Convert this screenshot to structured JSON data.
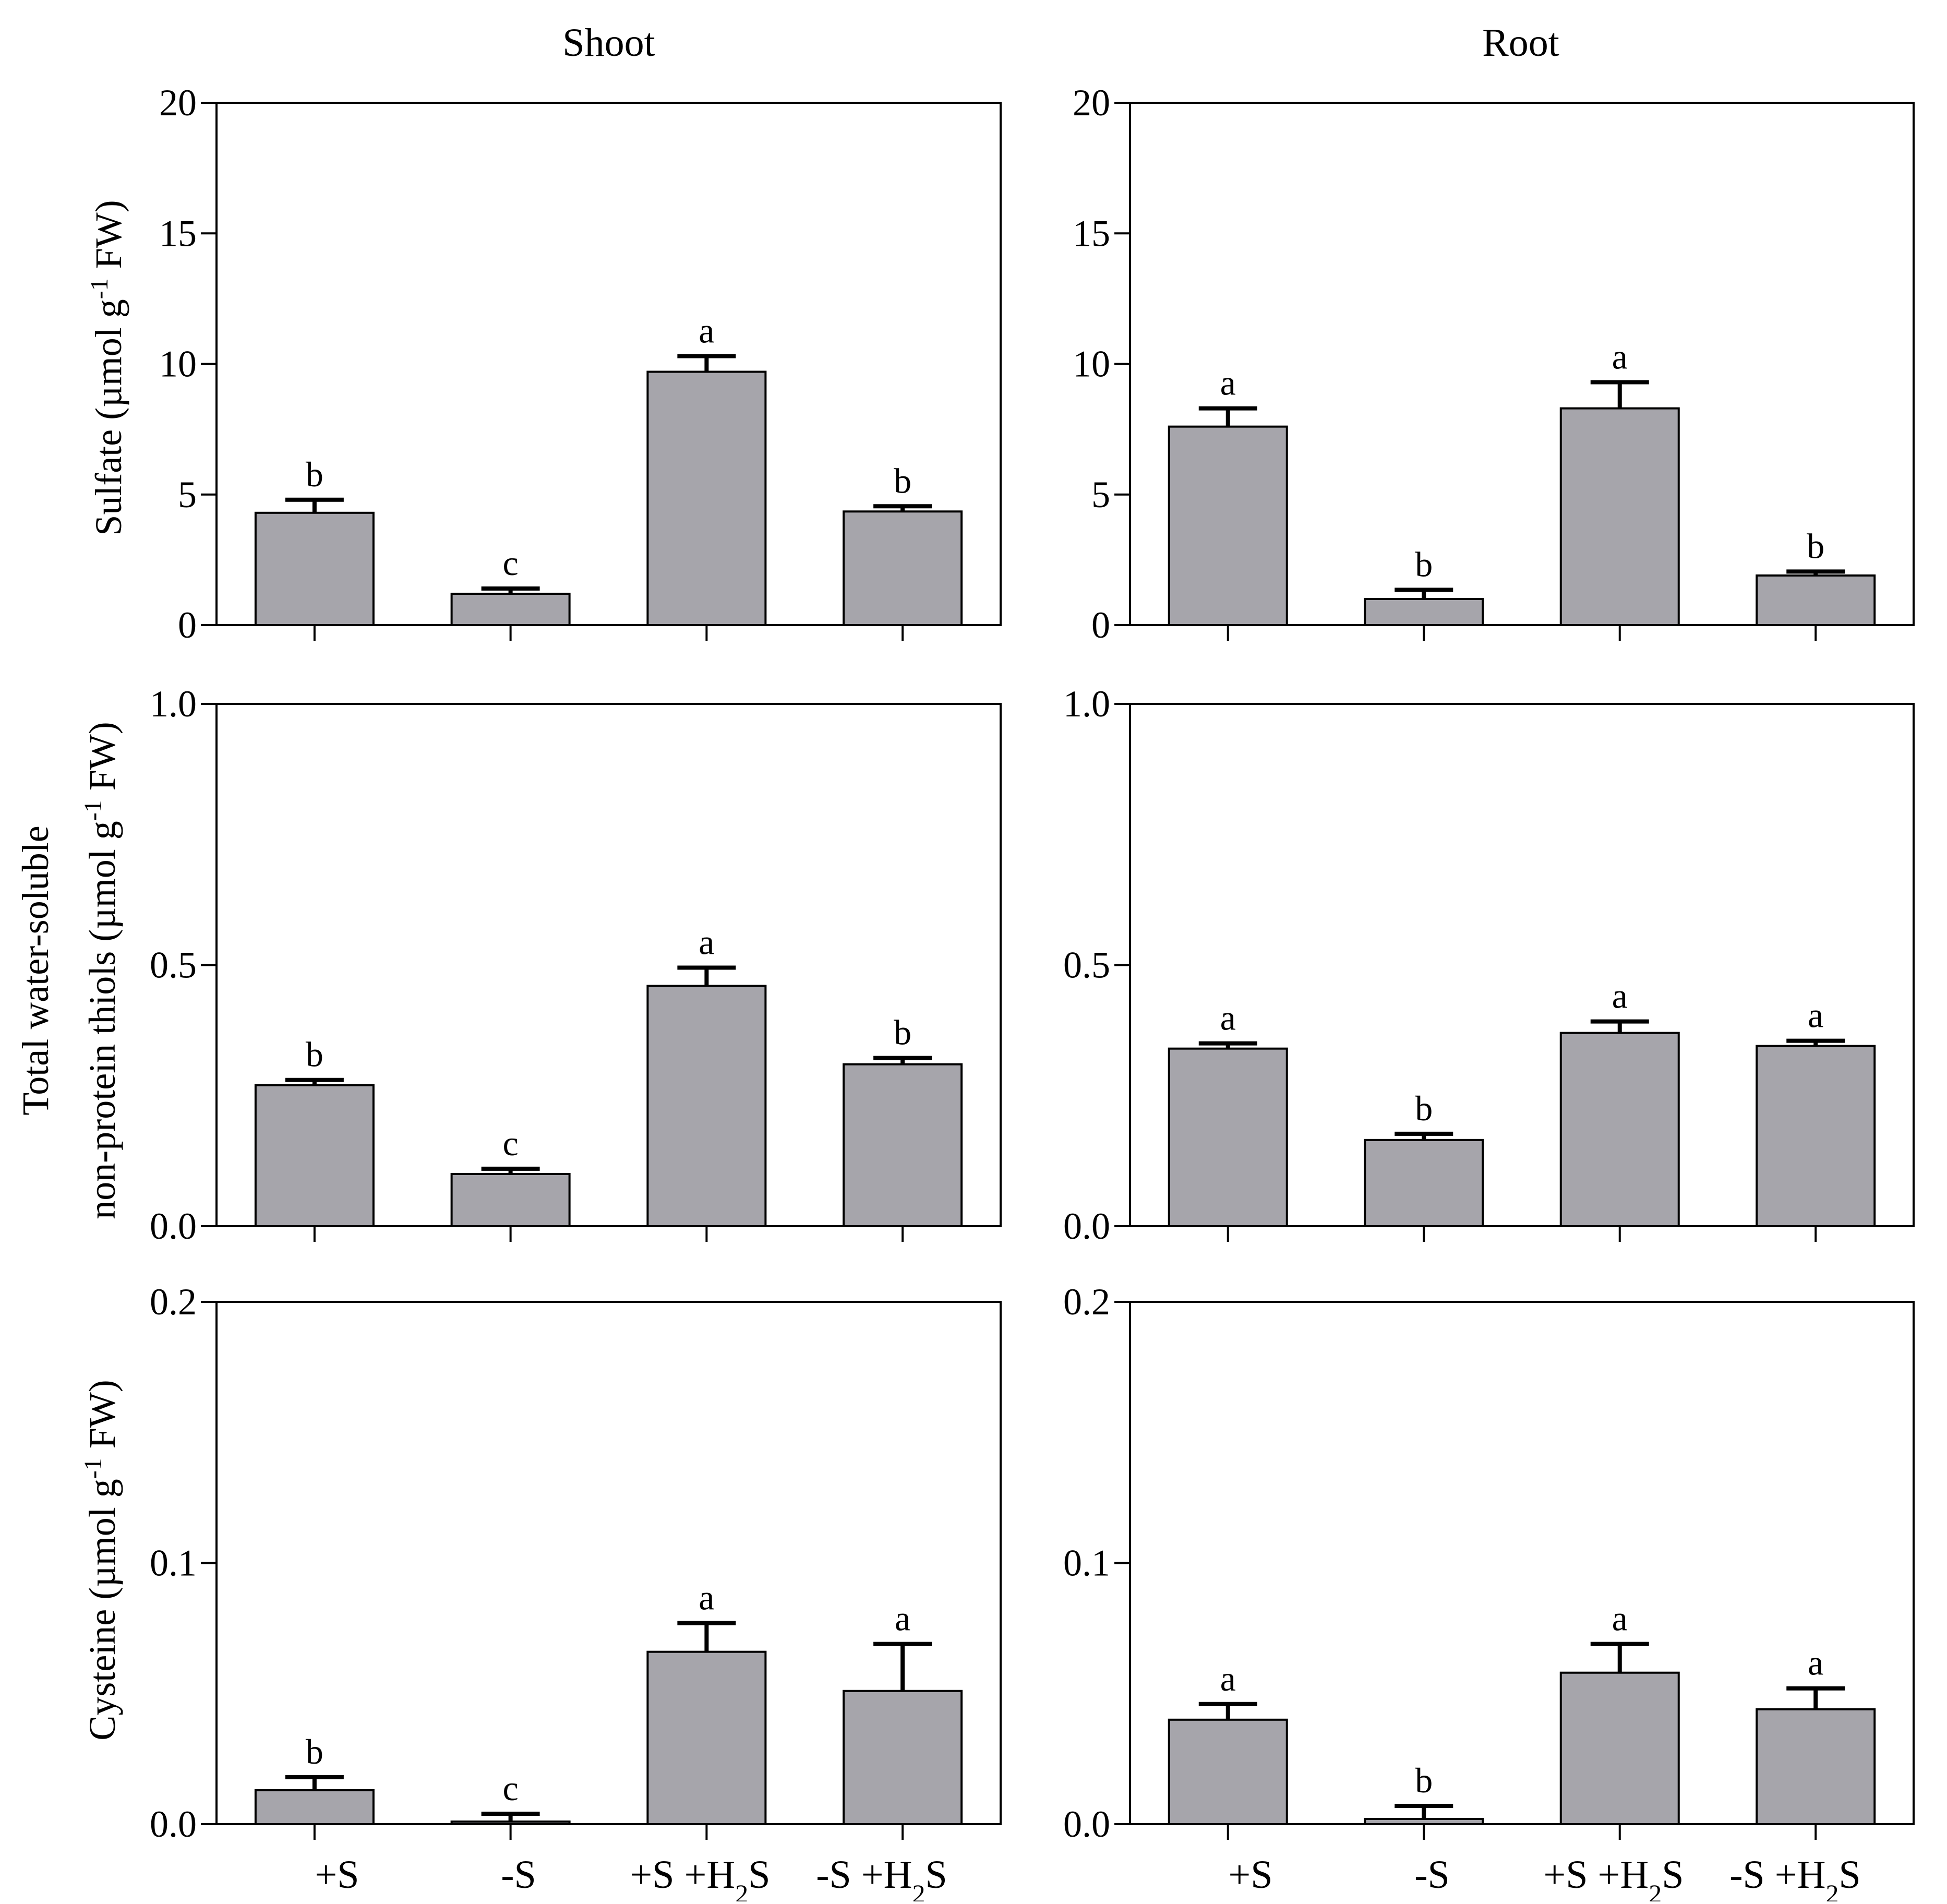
{
  "column_titles": {
    "shoot": "Shoot",
    "root": "Root"
  },
  "y_labels": {
    "sulfate": {
      "main": "Sulfate (µmol g",
      "sup": "-1",
      "tail": " FW)"
    },
    "thiols_line1": "Total water-soluble",
    "thiols_line2": {
      "main": "non-protein thiols (µmol g",
      "sup": "-1",
      "tail": " FW)"
    },
    "cysteine": {
      "main": "Cysteine (µmol g",
      "sup": "-1",
      "tail": " FW)"
    }
  },
  "categories": [
    {
      "main": "+S",
      "sub": "",
      "tail": ""
    },
    {
      "main": "-S",
      "sub": "",
      "tail": ""
    },
    {
      "main": "+S +H",
      "sub": "2",
      "tail": "S"
    },
    {
      "main": "-S +H",
      "sub": "2",
      "tail": "S"
    }
  ],
  "colors": {
    "bar_fill": "#a6a5ab",
    "stroke": "#000000"
  },
  "chart_data": [
    {
      "type": "bar",
      "name": "sulfate-shoot",
      "column": "Shoot",
      "ylabel": "Sulfate (µmol g-1 FW)",
      "ylim": [
        0,
        20
      ],
      "yticks": [
        "0",
        "5",
        "10",
        "15",
        "20"
      ],
      "categories": [
        "+S",
        "-S",
        "+S +H2S",
        "-S +H2S"
      ],
      "values": [
        4.3,
        1.2,
        9.7,
        4.35
      ],
      "errors": [
        0.5,
        0.2,
        0.6,
        0.2
      ],
      "significance": [
        "b",
        "c",
        "a",
        "b"
      ]
    },
    {
      "type": "bar",
      "name": "sulfate-root",
      "column": "Root",
      "ylabel": "Sulfate (µmol g-1 FW)",
      "ylim": [
        0,
        20
      ],
      "yticks": [
        "0",
        "5",
        "10",
        "15",
        "20"
      ],
      "categories": [
        "+S",
        "-S",
        "+S +H2S",
        "-S +H2S"
      ],
      "values": [
        7.6,
        1.0,
        8.3,
        1.9
      ],
      "errors": [
        0.7,
        0.35,
        1.0,
        0.15
      ],
      "significance": [
        "a",
        "b",
        "a",
        "b"
      ]
    },
    {
      "type": "bar",
      "name": "thiols-shoot",
      "column": "Shoot",
      "ylabel": "Total water-soluble non-protein thiols (µmol g-1 FW)",
      "ylim": [
        0,
        1.0
      ],
      "yticks": [
        "0.0",
        "0.5",
        "1.0"
      ],
      "categories": [
        "+S",
        "-S",
        "+S +H2S",
        "-S +H2S"
      ],
      "values": [
        0.27,
        0.1,
        0.46,
        0.31
      ],
      "errors": [
        0.01,
        0.01,
        0.035,
        0.012
      ],
      "significance": [
        "b",
        "c",
        "a",
        "b"
      ]
    },
    {
      "type": "bar",
      "name": "thiols-root",
      "column": "Root",
      "ylabel": "Total water-soluble non-protein thiols (µmol g-1 FW)",
      "ylim": [
        0,
        1.0
      ],
      "yticks": [
        "0.0",
        "0.5",
        "1.0"
      ],
      "categories": [
        "+S",
        "-S",
        "+S +H2S",
        "-S +H2S"
      ],
      "values": [
        0.34,
        0.165,
        0.37,
        0.345
      ],
      "errors": [
        0.01,
        0.012,
        0.022,
        0.01
      ],
      "significance": [
        "a",
        "b",
        "a",
        "a"
      ]
    },
    {
      "type": "bar",
      "name": "cysteine-shoot",
      "column": "Shoot",
      "ylabel": "Cysteine (µmol g-1 FW)",
      "ylim": [
        0,
        0.2
      ],
      "yticks": [
        "0.0",
        "0.1",
        "0.2"
      ],
      "categories": [
        "+S",
        "-S",
        "+S +H2S",
        "-S +H2S"
      ],
      "values": [
        0.013,
        0.001,
        0.066,
        0.051
      ],
      "errors": [
        0.005,
        0.003,
        0.011,
        0.018
      ],
      "significance": [
        "b",
        "c",
        "a",
        "a"
      ]
    },
    {
      "type": "bar",
      "name": "cysteine-root",
      "column": "Root",
      "ylabel": "Cysteine (µmol g-1 FW)",
      "ylim": [
        0,
        0.2
      ],
      "yticks": [
        "0.0",
        "0.1",
        "0.2"
      ],
      "categories": [
        "+S",
        "-S",
        "+S +H2S",
        "-S +H2S"
      ],
      "values": [
        0.04,
        0.002,
        0.058,
        0.044
      ],
      "errors": [
        0.006,
        0.005,
        0.011,
        0.008
      ],
      "significance": [
        "a",
        "b",
        "a",
        "a"
      ]
    }
  ]
}
